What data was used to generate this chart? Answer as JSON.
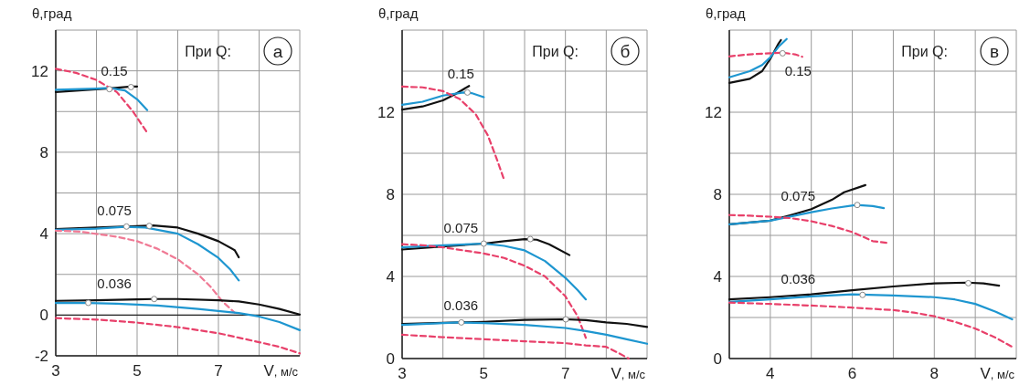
{
  "chart_data": [
    {
      "type": "line",
      "title": "а",
      "xlabel": "V, м/с",
      "ylabel": "θ,град",
      "grid": true,
      "xlim": [
        3,
        9
      ],
      "ylim": [
        -2,
        14
      ],
      "xticks": [
        3,
        {
          "value": 4,
          "label": null
        },
        5,
        {
          "value": 6,
          "label": null
        },
        7,
        {
          "value": 8,
          "label": null
        },
        {
          "value": 9,
          "label": null
        }
      ],
      "yticks": [
        -2,
        0,
        {
          "value": 2,
          "label": null
        },
        4,
        {
          "value": 6,
          "label": null
        },
        8,
        {
          "value": 10,
          "label": null
        },
        12,
        {
          "value": 14,
          "label": null
        }
      ],
      "annotations": [
        "При Q:",
        "0.15",
        "0.075",
        "0.036"
      ],
      "series": [
        {
          "color": "#111111",
          "line_style": "solid",
          "x": [
            3,
            4.32,
            4.85,
            5.0
          ],
          "values": [
            10.96,
            11.14,
            11.23,
            11.23
          ]
        },
        {
          "color": "#1e96d0",
          "line_style": "solid",
          "x": [
            3,
            4,
            4.3,
            4.7,
            5.0,
            5.25
          ],
          "values": [
            11.07,
            11.13,
            11.16,
            11.04,
            10.6,
            10.07
          ]
        },
        {
          "color": "#e8406a",
          "line_style": "dashed",
          "x": [
            3,
            3.5,
            4,
            4.5,
            4.9,
            5.1,
            5.25
          ],
          "values": [
            12.1,
            11.9,
            11.55,
            10.96,
            10.0,
            9.4,
            8.96
          ]
        },
        {
          "color": "#111111",
          "line_style": "solid",
          "x": [
            3,
            4,
            5,
            5.4,
            6,
            6.5,
            7,
            7.4,
            7.5
          ],
          "values": [
            4.22,
            4.3,
            4.37,
            4.4,
            4.3,
            4.0,
            3.63,
            3.19,
            2.84
          ]
        },
        {
          "color": "#1e96d0",
          "line_style": "solid",
          "x": [
            3,
            4,
            4.7,
            5.2,
            6,
            6.5,
            7,
            7.3,
            7.5
          ],
          "values": [
            4.19,
            4.25,
            4.34,
            4.3,
            4.0,
            3.48,
            2.81,
            2.22,
            1.7
          ]
        },
        {
          "color": "#f07a95",
          "line_style": "dashed",
          "x": [
            3,
            3.6,
            4.5,
            5,
            5.5,
            6,
            6.5,
            6.8,
            7.1,
            7.3,
            7.4
          ],
          "values": [
            4.15,
            4.1,
            3.85,
            3.63,
            3.26,
            2.74,
            2.0,
            1.41,
            0.67,
            0.3,
            0.12
          ]
        },
        {
          "color": "#111111",
          "line_style": "solid",
          "x": [
            3,
            4,
            5,
            5.4,
            6,
            7,
            7.5,
            8,
            8.5,
            9
          ],
          "values": [
            0.7,
            0.73,
            0.77,
            0.79,
            0.79,
            0.73,
            0.67,
            0.52,
            0.3,
            0.03
          ]
        },
        {
          "color": "#1e96d0",
          "line_style": "solid",
          "x": [
            3,
            3.8,
            4.5,
            5.5,
            6.5,
            7.5,
            8,
            8.5,
            9
          ],
          "values": [
            0.59,
            0.59,
            0.56,
            0.47,
            0.3,
            0.1,
            -0.07,
            -0.34,
            -0.74
          ]
        },
        {
          "color": "#e8406a",
          "line_style": "dashed",
          "x": [
            3,
            4,
            5,
            6,
            7,
            7.5,
            8,
            8.5,
            9
          ],
          "values": [
            -0.15,
            -0.22,
            -0.37,
            -0.59,
            -0.89,
            -1.11,
            -1.33,
            -1.56,
            -1.88
          ]
        },
        {
          "type": "scatter",
          "color": "#ffffff",
          "marker": "circle",
          "x": [
            4.32,
            4.85,
            4.74,
            5.3,
            3.8,
            5.42
          ],
          "values": [
            11.1,
            11.2,
            4.35,
            4.38,
            0.6,
            0.79
          ]
        }
      ]
    },
    {
      "type": "line",
      "title": "б",
      "xlabel": "V, м/с",
      "ylabel": "θ,град",
      "grid": true,
      "xlim": [
        3,
        9
      ],
      "ylim": [
        0,
        16
      ],
      "xticks": [
        3,
        {
          "value": 4,
          "label": null
        },
        5,
        {
          "value": 6,
          "label": null
        },
        7,
        {
          "value": 8,
          "label": null
        },
        {
          "value": 9,
          "label": null
        }
      ],
      "yticks": [
        0,
        {
          "value": 2,
          "label": null
        },
        4,
        {
          "value": 6,
          "label": null
        },
        8,
        {
          "value": 10,
          "label": null
        },
        12,
        {
          "value": 14,
          "label": null
        },
        {
          "value": 16,
          "label": null
        }
      ],
      "annotations": [
        "При Q:",
        "0.15",
        "0.075",
        "0.036"
      ],
      "series": [
        {
          "color": "#111111",
          "line_style": "solid",
          "x": [
            3,
            3.5,
            4,
            4.3,
            4.64
          ],
          "values": [
            12.13,
            12.28,
            12.58,
            12.88,
            13.28
          ]
        },
        {
          "color": "#1e96d0",
          "line_style": "solid",
          "x": [
            3,
            3.5,
            4,
            4.5,
            4.7,
            5.0
          ],
          "values": [
            12.36,
            12.51,
            12.81,
            12.96,
            12.93,
            12.73
          ]
        },
        {
          "color": "#e8406a",
          "line_style": "dashed",
          "x": [
            3,
            3.5,
            4,
            4.4,
            4.8,
            5.1,
            5.3,
            5.5
          ],
          "values": [
            13.25,
            13.21,
            13.03,
            12.66,
            11.91,
            10.87,
            9.82,
            8.7
          ]
        },
        {
          "color": "#111111",
          "line_style": "solid",
          "x": [
            3,
            4,
            5,
            5.5,
            6,
            6.3,
            6.6,
            7.1
          ],
          "values": [
            5.31,
            5.46,
            5.6,
            5.72,
            5.82,
            5.79,
            5.57,
            5.04
          ]
        },
        {
          "color": "#1e96d0",
          "line_style": "solid",
          "x": [
            3,
            4,
            5,
            5.5,
            6,
            6.5,
            7,
            7.3,
            7.5
          ],
          "values": [
            5.42,
            5.52,
            5.6,
            5.49,
            5.27,
            4.75,
            3.93,
            3.33,
            2.88
          ]
        },
        {
          "color": "#e8406a",
          "line_style": "dashed",
          "x": [
            3,
            3.5,
            4,
            5,
            5.5,
            6,
            6.5,
            7,
            7.3,
            7.5
          ],
          "values": [
            5.57,
            5.52,
            5.42,
            5.12,
            4.9,
            4.52,
            4.0,
            3.03,
            2.06,
            1.01
          ]
        },
        {
          "color": "#111111",
          "line_style": "solid",
          "x": [
            3,
            4.4,
            5,
            6,
            7,
            7.5,
            8,
            8.5,
            9
          ],
          "values": [
            1.69,
            1.76,
            1.79,
            1.88,
            1.91,
            1.87,
            1.76,
            1.69,
            1.54
          ]
        },
        {
          "color": "#1e96d0",
          "line_style": "solid",
          "x": [
            3,
            4.4,
            5,
            6,
            7,
            7.5,
            8,
            8.5,
            9
          ],
          "values": [
            1.64,
            1.76,
            1.73,
            1.64,
            1.49,
            1.34,
            1.16,
            0.94,
            0.72
          ]
        },
        {
          "color": "#e8406a",
          "line_style": "dashed",
          "x": [
            3,
            4,
            5,
            6,
            7,
            7.5,
            8,
            8.3,
            8.55
          ],
          "values": [
            1.16,
            1.04,
            0.94,
            0.84,
            0.75,
            0.64,
            0.57,
            0.27,
            0
          ]
        },
        {
          "type": "scatter",
          "color": "#ffffff",
          "marker": "circle",
          "x": [
            4.6,
            5.0,
            6.14,
            4.45,
            7.01
          ],
          "values": [
            12.96,
            5.6,
            5.82,
            1.76,
            1.91
          ]
        }
      ]
    },
    {
      "type": "line",
      "title": "в",
      "xlabel": "V, м/с",
      "ylabel": "θ,град",
      "grid": true,
      "xlim": [
        3,
        10
      ],
      "ylim": [
        0,
        16
      ],
      "xticks": [
        {
          "value": 3,
          "label": null
        },
        4,
        {
          "value": 5,
          "label": null
        },
        6,
        {
          "value": 7,
          "label": null
        },
        8,
        {
          "value": 9,
          "label": null
        },
        {
          "value": 10,
          "label": null
        }
      ],
      "yticks": [
        0,
        {
          "value": 2,
          "label": null
        },
        4,
        {
          "value": 6,
          "label": null
        },
        8,
        {
          "value": 10,
          "label": null
        },
        12,
        {
          "value": 14,
          "label": null
        },
        {
          "value": 16,
          "label": null
        }
      ],
      "annotations": [
        "При Q:",
        "0.15",
        "0.075",
        "0.036"
      ],
      "series": [
        {
          "color": "#111111",
          "line_style": "solid",
          "x": [
            3,
            3.5,
            3.8,
            4.0,
            4.2,
            4.26
          ],
          "values": [
            13.43,
            13.63,
            14.0,
            14.6,
            15.34,
            15.52
          ]
        },
        {
          "color": "#1e96d0",
          "line_style": "solid",
          "x": [
            3,
            3.5,
            3.8,
            4.0,
            4.2,
            4.4
          ],
          "values": [
            13.7,
            14.0,
            14.3,
            14.67,
            15.19,
            15.57
          ]
        },
        {
          "color": "#e8406a",
          "line_style": "dashed",
          "x": [
            3,
            3.5,
            4,
            4.3,
            4.6,
            4.78
          ],
          "values": [
            14.72,
            14.82,
            14.87,
            14.9,
            14.82,
            14.7
          ]
        },
        {
          "color": "#111111",
          "line_style": "solid",
          "x": [
            3,
            4,
            4.5,
            5,
            5.5,
            5.8,
            6.32
          ],
          "values": [
            6.54,
            6.72,
            6.99,
            7.28,
            7.73,
            8.1,
            8.45
          ]
        },
        {
          "color": "#1e96d0",
          "line_style": "solid",
          "x": [
            3,
            4,
            5,
            5.5,
            6.1,
            6.5,
            6.77
          ],
          "values": [
            6.54,
            6.72,
            7.13,
            7.31,
            7.48,
            7.43,
            7.33
          ]
        },
        {
          "color": "#e8406a",
          "line_style": "dashed",
          "x": [
            3,
            3.5,
            4,
            4.5,
            5,
            5.5,
            6,
            6.5,
            6.83
          ],
          "values": [
            6.99,
            6.96,
            6.91,
            6.84,
            6.69,
            6.46,
            6.16,
            5.72,
            5.64
          ]
        },
        {
          "color": "#111111",
          "line_style": "solid",
          "x": [
            3,
            4,
            5,
            6,
            7,
            8,
            8.8,
            9.2,
            9.58
          ],
          "values": [
            2.88,
            2.99,
            3.13,
            3.33,
            3.51,
            3.66,
            3.7,
            3.66,
            3.55
          ]
        },
        {
          "color": "#1e96d0",
          "line_style": "solid",
          "x": [
            3,
            4,
            5,
            6,
            7,
            8,
            8.5,
            9,
            9.5,
            9.9
          ],
          "values": [
            2.76,
            2.88,
            3.03,
            3.13,
            3.07,
            2.99,
            2.88,
            2.66,
            2.28,
            1.91
          ]
        },
        {
          "color": "#e8406a",
          "line_style": "dashed",
          "x": [
            3,
            4,
            5,
            6,
            7,
            7.5,
            8,
            8.5,
            9,
            9.5,
            9.9
          ],
          "values": [
            2.73,
            2.66,
            2.58,
            2.48,
            2.36,
            2.24,
            2.06,
            1.79,
            1.46,
            1.01,
            0.57
          ]
        },
        {
          "type": "scatter",
          "color": "#ffffff",
          "marker": "circle",
          "x": [
            4.3,
            6.12,
            6.25,
            8.83
          ],
          "values": [
            14.87,
            7.48,
            3.1,
            3.67
          ]
        }
      ]
    }
  ]
}
